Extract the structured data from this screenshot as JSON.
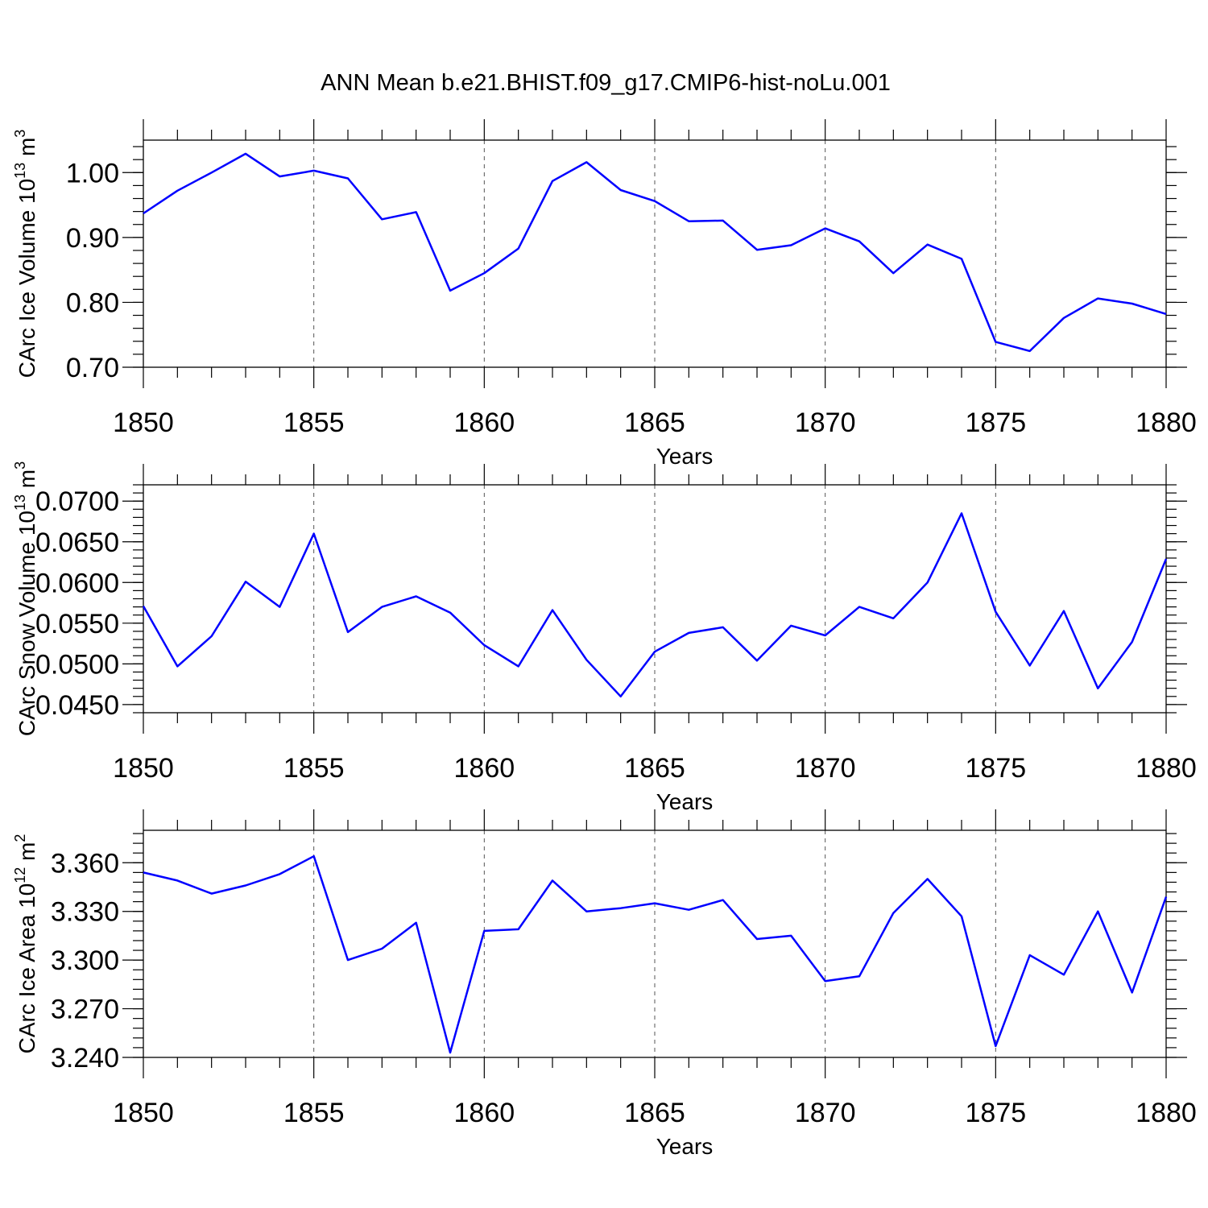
{
  "title": "ANN Mean b.e21.BHIST.f09_g17.CMIP6-hist-noLu.001",
  "colors": {
    "series": "#0000ff",
    "axes": "#000000",
    "grid": "#555555"
  },
  "chart_data": [
    {
      "type": "line",
      "title": "ANN Mean b.e21.BHIST.f09_g17.CMIP6-hist-noLu.001",
      "xlabel": "Years",
      "ylabel": "CArc Ice Volume 10¹³ m³",
      "ylabel_base": "CArc Ice Volume 10",
      "ylabel_exp": "13",
      "ylabel_unit": " m",
      "ylabel_unit_exp": "3",
      "xlim": [
        1850,
        1880
      ],
      "ylim": [
        0.7,
        1.05
      ],
      "xticks": [
        1850,
        1855,
        1860,
        1865,
        1870,
        1875,
        1880
      ],
      "yticks": [
        0.7,
        0.8,
        0.9,
        1.0
      ],
      "ytick_labels": [
        "0.70",
        "0.80",
        "0.90",
        "1.00"
      ],
      "yminor_step": 0.02,
      "grid": "vertical dashed at major x ticks",
      "series": [
        {
          "name": "CArc Ice Volume",
          "x": [
            1850,
            1851,
            1852,
            1853,
            1854,
            1855,
            1856,
            1857,
            1858,
            1859,
            1860,
            1861,
            1862,
            1863,
            1864,
            1865,
            1866,
            1867,
            1868,
            1869,
            1870,
            1871,
            1872,
            1873,
            1874,
            1875,
            1876,
            1877,
            1878,
            1879,
            1880
          ],
          "y": [
            0.937,
            0.972,
            1.0,
            1.029,
            0.994,
            1.003,
            0.991,
            0.928,
            0.939,
            0.818,
            0.845,
            0.883,
            0.987,
            1.016,
            0.973,
            0.956,
            0.925,
            0.926,
            0.881,
            0.888,
            0.914,
            0.894,
            0.845,
            0.889,
            0.867,
            0.739,
            0.725,
            0.776,
            0.806,
            0.798,
            0.782
          ]
        }
      ]
    },
    {
      "type": "line",
      "xlabel": "Years",
      "ylabel": "CArc Snow Volume 10¹³ m³",
      "ylabel_base": "CArc Snow Volume 10",
      "ylabel_exp": "13",
      "ylabel_unit": " m",
      "ylabel_unit_exp": "3",
      "xlim": [
        1850,
        1880
      ],
      "ylim": [
        0.044,
        0.072
      ],
      "xticks": [
        1850,
        1855,
        1860,
        1865,
        1870,
        1875,
        1880
      ],
      "yticks": [
        0.045,
        0.05,
        0.055,
        0.06,
        0.065,
        0.07
      ],
      "ytick_labels": [
        "0.0450",
        "0.0500",
        "0.0550",
        "0.0600",
        "0.0650",
        "0.0700"
      ],
      "yminor_step": 0.001,
      "grid": "vertical dashed at major x ticks",
      "series": [
        {
          "name": "CArc Snow Volume",
          "x": [
            1850,
            1851,
            1852,
            1853,
            1854,
            1855,
            1856,
            1857,
            1858,
            1859,
            1860,
            1861,
            1862,
            1863,
            1864,
            1865,
            1866,
            1867,
            1868,
            1869,
            1870,
            1871,
            1872,
            1873,
            1874,
            1875,
            1876,
            1877,
            1878,
            1879,
            1880
          ],
          "y": [
            0.0571,
            0.0497,
            0.0534,
            0.0601,
            0.057,
            0.066,
            0.0539,
            0.057,
            0.0583,
            0.0563,
            0.0523,
            0.0497,
            0.0566,
            0.0505,
            0.046,
            0.0515,
            0.0538,
            0.0545,
            0.0504,
            0.0547,
            0.0535,
            0.057,
            0.0556,
            0.06,
            0.0685,
            0.0564,
            0.0498,
            0.0565,
            0.047,
            0.0527,
            0.0629
          ]
        }
      ]
    },
    {
      "type": "line",
      "xlabel": "Years",
      "ylabel": "CArc Ice Area 10¹² m²",
      "ylabel_base": "CArc Ice Area 10",
      "ylabel_exp": "12",
      "ylabel_unit": " m",
      "ylabel_unit_exp": "2",
      "xlim": [
        1850,
        1880
      ],
      "ylim": [
        3.24,
        3.38
      ],
      "xticks": [
        1850,
        1855,
        1860,
        1865,
        1870,
        1875,
        1880
      ],
      "yticks": [
        3.24,
        3.27,
        3.3,
        3.33,
        3.36
      ],
      "ytick_labels": [
        "3.240",
        "3.270",
        "3.300",
        "3.330",
        "3.360"
      ],
      "yminor_step": 0.006,
      "grid": "vertical dashed at major x ticks",
      "series": [
        {
          "name": "CArc Ice Area",
          "x": [
            1850,
            1851,
            1852,
            1853,
            1854,
            1855,
            1856,
            1857,
            1858,
            1859,
            1860,
            1861,
            1862,
            1863,
            1864,
            1865,
            1866,
            1867,
            1868,
            1869,
            1870,
            1871,
            1872,
            1873,
            1874,
            1875,
            1876,
            1877,
            1878,
            1879,
            1880
          ],
          "y": [
            3.354,
            3.349,
            3.341,
            3.346,
            3.353,
            3.364,
            3.3,
            3.307,
            3.323,
            3.243,
            3.318,
            3.319,
            3.349,
            3.33,
            3.332,
            3.335,
            3.331,
            3.337,
            3.313,
            3.315,
            3.287,
            3.29,
            3.329,
            3.35,
            3.327,
            3.247,
            3.303,
            3.291,
            3.33,
            3.28,
            3.339
          ]
        }
      ]
    }
  ]
}
